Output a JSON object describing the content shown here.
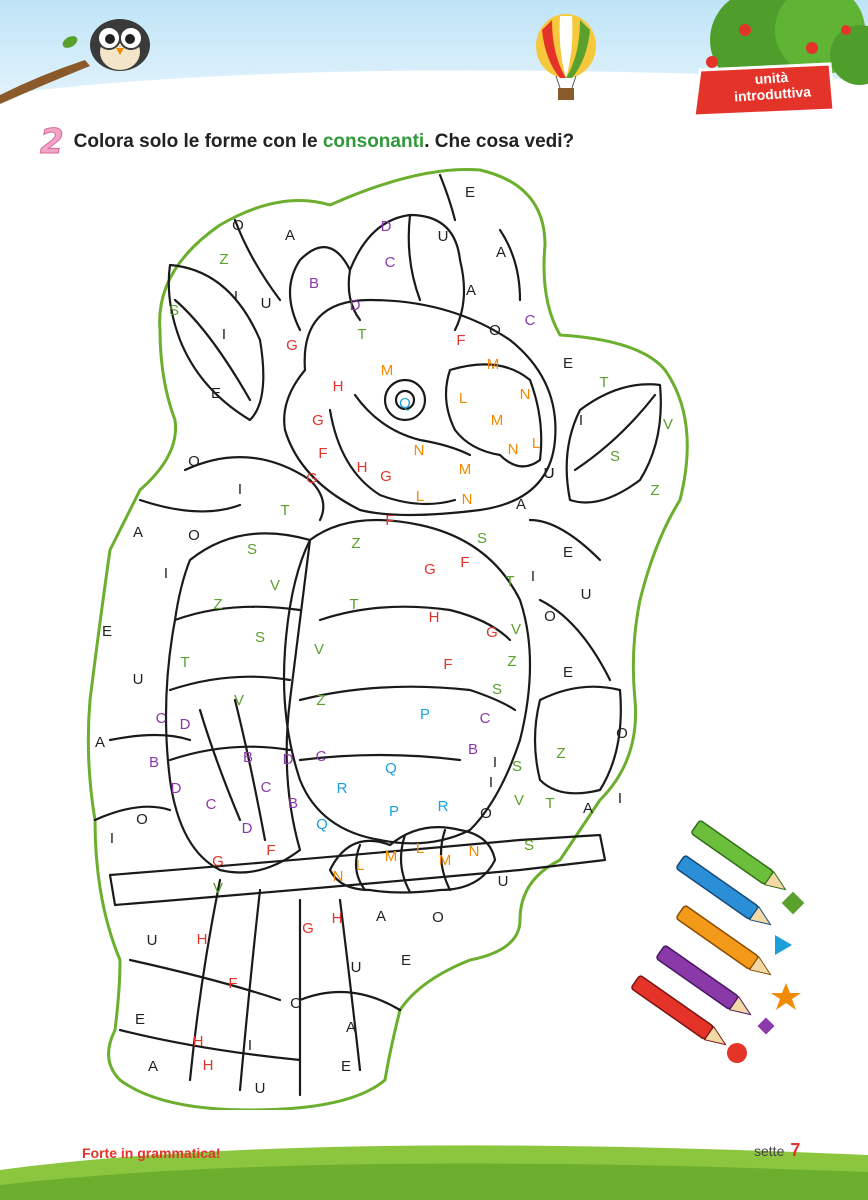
{
  "header": {
    "badge_line1": "unità",
    "badge_line2": "introduttiva"
  },
  "exercise": {
    "number": "2",
    "text_before": "Colora solo le forme con le ",
    "text_highlight": "consonanti",
    "text_after": ". Che cosa vedi?"
  },
  "footer": {
    "title": "Forte in grammatica!",
    "page_word": "sette",
    "page_number": "7"
  },
  "colors": {
    "vowel": "#222222",
    "green": "#5aa02c",
    "orange": "#f08a00",
    "red": "#e4342a",
    "purple": "#8a3aa8",
    "blue": "#1ca0dc",
    "outline": "#6cae2e"
  },
  "letters": [
    {
      "t": "E",
      "c": "vowel"
    },
    {
      "t": "O",
      "c": "vowel"
    },
    {
      "t": "A",
      "c": "vowel"
    },
    {
      "t": "D",
      "c": "purple"
    },
    {
      "t": "U",
      "c": "vowel"
    },
    {
      "t": "A",
      "c": "vowel"
    },
    {
      "t": "Z",
      "c": "green"
    },
    {
      "t": "C",
      "c": "purple"
    },
    {
      "t": "B",
      "c": "purple"
    },
    {
      "t": "I",
      "c": "vowel"
    },
    {
      "t": "U",
      "c": "vowel"
    },
    {
      "t": "D",
      "c": "purple"
    },
    {
      "t": "A",
      "c": "vowel"
    },
    {
      "t": "S",
      "c": "green"
    },
    {
      "t": "I",
      "c": "vowel"
    },
    {
      "t": "T",
      "c": "green"
    },
    {
      "t": "F",
      "c": "red"
    },
    {
      "t": "G",
      "c": "red"
    },
    {
      "t": "O",
      "c": "vowel"
    },
    {
      "t": "C",
      "c": "purple"
    },
    {
      "t": "M",
      "c": "orange"
    },
    {
      "t": "E",
      "c": "vowel"
    },
    {
      "t": "M",
      "c": "orange"
    },
    {
      "t": "T",
      "c": "green"
    },
    {
      "t": "H",
      "c": "red"
    },
    {
      "t": "E",
      "c": "vowel"
    },
    {
      "t": "Q",
      "c": "blue"
    },
    {
      "t": "L",
      "c": "orange"
    },
    {
      "t": "N",
      "c": "orange"
    },
    {
      "t": "M",
      "c": "orange"
    },
    {
      "t": "I",
      "c": "vowel"
    },
    {
      "t": "V",
      "c": "green"
    },
    {
      "t": "G",
      "c": "red"
    },
    {
      "t": "F",
      "c": "red"
    },
    {
      "t": "N",
      "c": "orange"
    },
    {
      "t": "N",
      "c": "orange"
    },
    {
      "t": "L",
      "c": "orange"
    },
    {
      "t": "S",
      "c": "green"
    },
    {
      "t": "O",
      "c": "vowel"
    },
    {
      "t": "H",
      "c": "red"
    },
    {
      "t": "G",
      "c": "red"
    },
    {
      "t": "M",
      "c": "orange"
    },
    {
      "t": "U",
      "c": "vowel"
    },
    {
      "t": "U",
      "c": "vowel"
    },
    {
      "t": "G",
      "c": "red"
    },
    {
      "t": "I",
      "c": "vowel"
    },
    {
      "t": "L",
      "c": "orange"
    },
    {
      "t": "N",
      "c": "orange"
    },
    {
      "t": "A",
      "c": "vowel"
    },
    {
      "t": "Z",
      "c": "green"
    },
    {
      "t": "T",
      "c": "green"
    },
    {
      "t": "F",
      "c": "red"
    },
    {
      "t": "A",
      "c": "vowel"
    },
    {
      "t": "O",
      "c": "vowel"
    },
    {
      "t": "S",
      "c": "green"
    },
    {
      "t": "Z",
      "c": "green"
    },
    {
      "t": "S",
      "c": "green"
    },
    {
      "t": "E",
      "c": "vowel"
    },
    {
      "t": "I",
      "c": "vowel"
    },
    {
      "t": "G",
      "c": "red"
    },
    {
      "t": "F",
      "c": "red"
    },
    {
      "t": "T",
      "c": "green"
    },
    {
      "t": "I",
      "c": "vowel"
    },
    {
      "t": "V",
      "c": "green"
    },
    {
      "t": "U",
      "c": "vowel"
    },
    {
      "t": "Z",
      "c": "green"
    },
    {
      "t": "T",
      "c": "green"
    },
    {
      "t": "O",
      "c": "vowel"
    },
    {
      "t": "E",
      "c": "vowel"
    },
    {
      "t": "H",
      "c": "red"
    },
    {
      "t": "G",
      "c": "red"
    },
    {
      "t": "V",
      "c": "green"
    },
    {
      "t": "S",
      "c": "green"
    },
    {
      "t": "V",
      "c": "green"
    },
    {
      "t": "T",
      "c": "green"
    },
    {
      "t": "F",
      "c": "red"
    },
    {
      "t": "Z",
      "c": "green"
    },
    {
      "t": "U",
      "c": "vowel"
    },
    {
      "t": "E",
      "c": "vowel"
    },
    {
      "t": "V",
      "c": "green"
    },
    {
      "t": "Z",
      "c": "green"
    },
    {
      "t": "S",
      "c": "green"
    },
    {
      "t": "C",
      "c": "purple"
    },
    {
      "t": "D",
      "c": "purple"
    },
    {
      "t": "P",
      "c": "blue"
    },
    {
      "t": "C",
      "c": "purple"
    },
    {
      "t": "A",
      "c": "vowel"
    },
    {
      "t": "O",
      "c": "vowel"
    },
    {
      "t": "B",
      "c": "purple"
    },
    {
      "t": "B",
      "c": "purple"
    },
    {
      "t": "D",
      "c": "purple"
    },
    {
      "t": "C",
      "c": "purple"
    },
    {
      "t": "Q",
      "c": "blue"
    },
    {
      "t": "B",
      "c": "purple"
    },
    {
      "t": "I",
      "c": "vowel"
    },
    {
      "t": "S",
      "c": "green"
    },
    {
      "t": "Z",
      "c": "green"
    },
    {
      "t": "I",
      "c": "vowel"
    },
    {
      "t": "D",
      "c": "purple"
    },
    {
      "t": "C",
      "c": "purple"
    },
    {
      "t": "R",
      "c": "blue"
    },
    {
      "t": "V",
      "c": "green"
    },
    {
      "t": "T",
      "c": "green"
    },
    {
      "t": "A",
      "c": "vowel"
    },
    {
      "t": "I",
      "c": "vowel"
    },
    {
      "t": "O",
      "c": "vowel"
    },
    {
      "t": "C",
      "c": "purple"
    },
    {
      "t": "B",
      "c": "purple"
    },
    {
      "t": "P",
      "c": "blue"
    },
    {
      "t": "R",
      "c": "blue"
    },
    {
      "t": "O",
      "c": "vowel"
    },
    {
      "t": "I",
      "c": "vowel"
    },
    {
      "t": "D",
      "c": "purple"
    },
    {
      "t": "Q",
      "c": "blue"
    },
    {
      "t": "F",
      "c": "red"
    },
    {
      "t": "M",
      "c": "orange"
    },
    {
      "t": "L",
      "c": "orange"
    },
    {
      "t": "M",
      "c": "orange"
    },
    {
      "t": "N",
      "c": "orange"
    },
    {
      "t": "S",
      "c": "green"
    },
    {
      "t": "G",
      "c": "red"
    },
    {
      "t": "N",
      "c": "orange"
    },
    {
      "t": "L",
      "c": "orange"
    },
    {
      "t": "U",
      "c": "vowel"
    },
    {
      "t": "V",
      "c": "green"
    },
    {
      "t": "H",
      "c": "red"
    },
    {
      "t": "A",
      "c": "vowel"
    },
    {
      "t": "O",
      "c": "vowel"
    },
    {
      "t": "G",
      "c": "red"
    },
    {
      "t": "U",
      "c": "vowel"
    },
    {
      "t": "H",
      "c": "red"
    },
    {
      "t": "E",
      "c": "vowel"
    },
    {
      "t": "U",
      "c": "vowel"
    },
    {
      "t": "F",
      "c": "red"
    },
    {
      "t": "O",
      "c": "vowel"
    },
    {
      "t": "E",
      "c": "vowel"
    },
    {
      "t": "A",
      "c": "vowel"
    },
    {
      "t": "H",
      "c": "red"
    },
    {
      "t": "I",
      "c": "vowel"
    },
    {
      "t": "A",
      "c": "vowel"
    },
    {
      "t": "H",
      "c": "red"
    },
    {
      "t": "E",
      "c": "vowel"
    },
    {
      "t": "U",
      "c": "vowel"
    }
  ]
}
